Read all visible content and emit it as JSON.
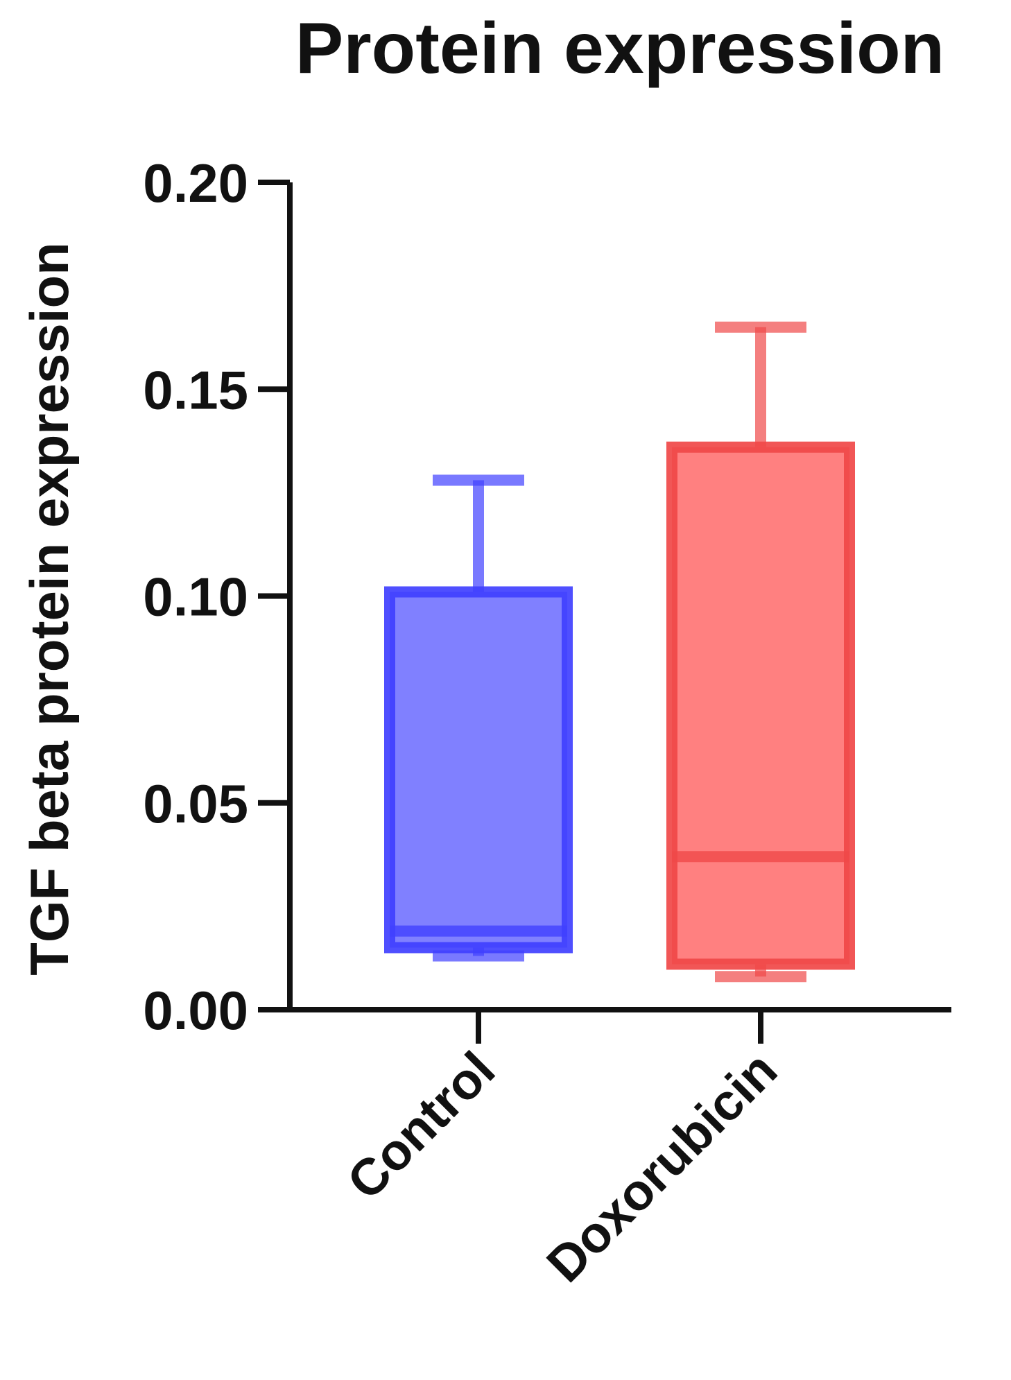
{
  "chart_data": {
    "type": "box",
    "title": "Protein expression",
    "xlabel": "",
    "ylabel": "TGF beta protein expression",
    "ylim": [
      0,
      0.2
    ],
    "yticks": [
      "0.00",
      "0.05",
      "0.10",
      "0.15",
      "0.20"
    ],
    "grid": false,
    "categories": [
      "Control",
      "Doxorubicin"
    ],
    "series": [
      {
        "category": "Control",
        "min": 0.013,
        "q1": 0.015,
        "median": 0.019,
        "q3": 0.101,
        "max": 0.128,
        "fill": "#8080ff",
        "stroke": "#4040ff"
      },
      {
        "category": "Doxorubicin",
        "min": 0.008,
        "q1": 0.011,
        "median": 0.037,
        "q3": 0.136,
        "max": 0.165,
        "fill": "#ff8080",
        "stroke": "#f04848"
      }
    ]
  }
}
